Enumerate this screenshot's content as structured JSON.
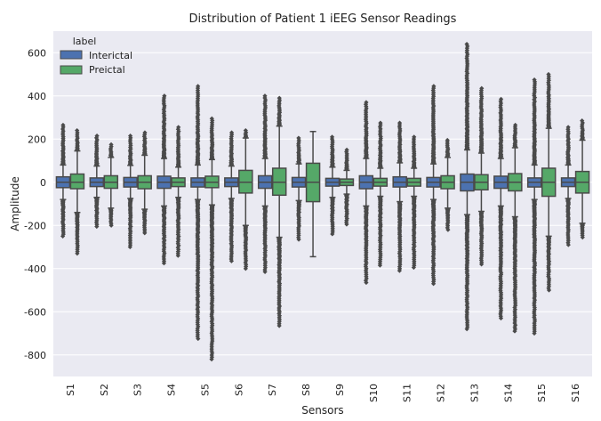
{
  "chart_data": {
    "type": "boxplot",
    "title": "Distribution of Patient 1 iEEG Sensor Readings",
    "xlabel": "Sensors",
    "ylabel": "Amplitude",
    "ylim": [
      -900,
      700
    ],
    "yticks": [
      -800,
      -600,
      -400,
      -200,
      0,
      200,
      400,
      600
    ],
    "grid": true,
    "legend": {
      "title": "label",
      "placement": "top-left"
    },
    "categories": [
      "S1",
      "S2",
      "S3",
      "S4",
      "S5",
      "S6",
      "S7",
      "S8",
      "S9",
      "S10",
      "S11",
      "S12",
      "S13",
      "S14",
      "S15",
      "S16"
    ],
    "series": [
      {
        "name": "Interictal",
        "color": "#4c72b0",
        "boxes": [
          {
            "q1": -25,
            "median": 0,
            "q3": 25,
            "wlo": -80,
            "whi": 80,
            "fmin": -250,
            "fmax": 265
          },
          {
            "q1": -20,
            "median": 0,
            "q3": 20,
            "wlo": -70,
            "whi": 75,
            "fmin": -205,
            "fmax": 215
          },
          {
            "q1": -22,
            "median": 0,
            "q3": 22,
            "wlo": -75,
            "whi": 78,
            "fmin": -300,
            "fmax": 215
          },
          {
            "q1": -28,
            "median": 0,
            "q3": 28,
            "wlo": -110,
            "whi": 110,
            "fmin": -375,
            "fmax": 400
          },
          {
            "q1": -22,
            "median": 0,
            "q3": 20,
            "wlo": -80,
            "whi": 80,
            "fmin": -725,
            "fmax": 445
          },
          {
            "q1": -20,
            "median": 0,
            "q3": 20,
            "wlo": -75,
            "whi": 75,
            "fmin": -365,
            "fmax": 230
          },
          {
            "q1": -28,
            "median": 0,
            "q3": 30,
            "wlo": -110,
            "whi": 110,
            "fmin": -415,
            "fmax": 400
          },
          {
            "q1": -22,
            "median": 0,
            "q3": 22,
            "wlo": -85,
            "whi": 85,
            "fmin": -265,
            "fmax": 205
          },
          {
            "q1": -18,
            "median": 0,
            "q3": 18,
            "wlo": -70,
            "whi": 70,
            "fmin": -240,
            "fmax": 210
          },
          {
            "q1": -30,
            "median": 0,
            "q3": 30,
            "wlo": -110,
            "whi": 110,
            "fmin": -465,
            "fmax": 370
          },
          {
            "q1": -22,
            "median": 0,
            "q3": 25,
            "wlo": -90,
            "whi": 90,
            "fmin": -410,
            "fmax": 275
          },
          {
            "q1": -22,
            "median": 0,
            "q3": 22,
            "wlo": -80,
            "whi": 85,
            "fmin": -470,
            "fmax": 445
          },
          {
            "q1": -40,
            "median": 0,
            "q3": 38,
            "wlo": -150,
            "whi": 150,
            "fmin": -680,
            "fmax": 640
          },
          {
            "q1": -28,
            "median": 0,
            "q3": 28,
            "wlo": -110,
            "whi": 110,
            "fmin": -630,
            "fmax": 385
          },
          {
            "q1": -22,
            "median": 0,
            "q3": 20,
            "wlo": -80,
            "whi": 80,
            "fmin": -700,
            "fmax": 475
          },
          {
            "q1": -20,
            "median": 0,
            "q3": 20,
            "wlo": -75,
            "whi": 80,
            "fmin": -290,
            "fmax": 255
          }
        ]
      },
      {
        "name": "Preictal",
        "color": "#55a868",
        "boxes": [
          {
            "q1": -30,
            "median": 0,
            "q3": 38,
            "wlo": -140,
            "whi": 145,
            "fmin": -330,
            "fmax": 240
          },
          {
            "q1": -28,
            "median": 0,
            "q3": 30,
            "wlo": -120,
            "whi": 115,
            "fmin": -200,
            "fmax": 175
          },
          {
            "q1": -30,
            "median": 0,
            "q3": 30,
            "wlo": -125,
            "whi": 125,
            "fmin": -235,
            "fmax": 230
          },
          {
            "q1": -20,
            "median": 0,
            "q3": 20,
            "wlo": -70,
            "whi": 70,
            "fmin": -340,
            "fmax": 255
          },
          {
            "q1": -25,
            "median": 0,
            "q3": 28,
            "wlo": -105,
            "whi": 105,
            "fmin": -820,
            "fmax": 295
          },
          {
            "q1": -50,
            "median": 0,
            "q3": 55,
            "wlo": -200,
            "whi": 205,
            "fmin": -400,
            "fmax": 240
          },
          {
            "q1": -60,
            "median": 0,
            "q3": 65,
            "wlo": -255,
            "whi": 260,
            "fmin": -665,
            "fmax": 390
          },
          {
            "q1": -90,
            "median": 0,
            "q3": 88,
            "wlo": -345,
            "whi": 235,
            "fmin": -345,
            "fmax": 235
          },
          {
            "q1": -15,
            "median": 0,
            "q3": 15,
            "wlo": -55,
            "whi": 55,
            "fmin": -195,
            "fmax": 150
          },
          {
            "q1": -18,
            "median": 0,
            "q3": 18,
            "wlo": -65,
            "whi": 65,
            "fmin": -385,
            "fmax": 275
          },
          {
            "q1": -18,
            "median": 0,
            "q3": 18,
            "wlo": -65,
            "whi": 65,
            "fmin": -395,
            "fmax": 210
          },
          {
            "q1": -30,
            "median": 0,
            "q3": 30,
            "wlo": -120,
            "whi": 115,
            "fmin": -220,
            "fmax": 195
          },
          {
            "q1": -35,
            "median": 0,
            "q3": 35,
            "wlo": -135,
            "whi": 135,
            "fmin": -380,
            "fmax": 435
          },
          {
            "q1": -40,
            "median": 0,
            "q3": 40,
            "wlo": -160,
            "whi": 160,
            "fmin": -690,
            "fmax": 265
          },
          {
            "q1": -65,
            "median": 0,
            "q3": 65,
            "wlo": -250,
            "whi": 250,
            "fmin": -500,
            "fmax": 500
          },
          {
            "q1": -50,
            "median": 0,
            "q3": 50,
            "wlo": -190,
            "whi": 195,
            "fmin": -255,
            "fmax": 285
          }
        ]
      }
    ]
  }
}
